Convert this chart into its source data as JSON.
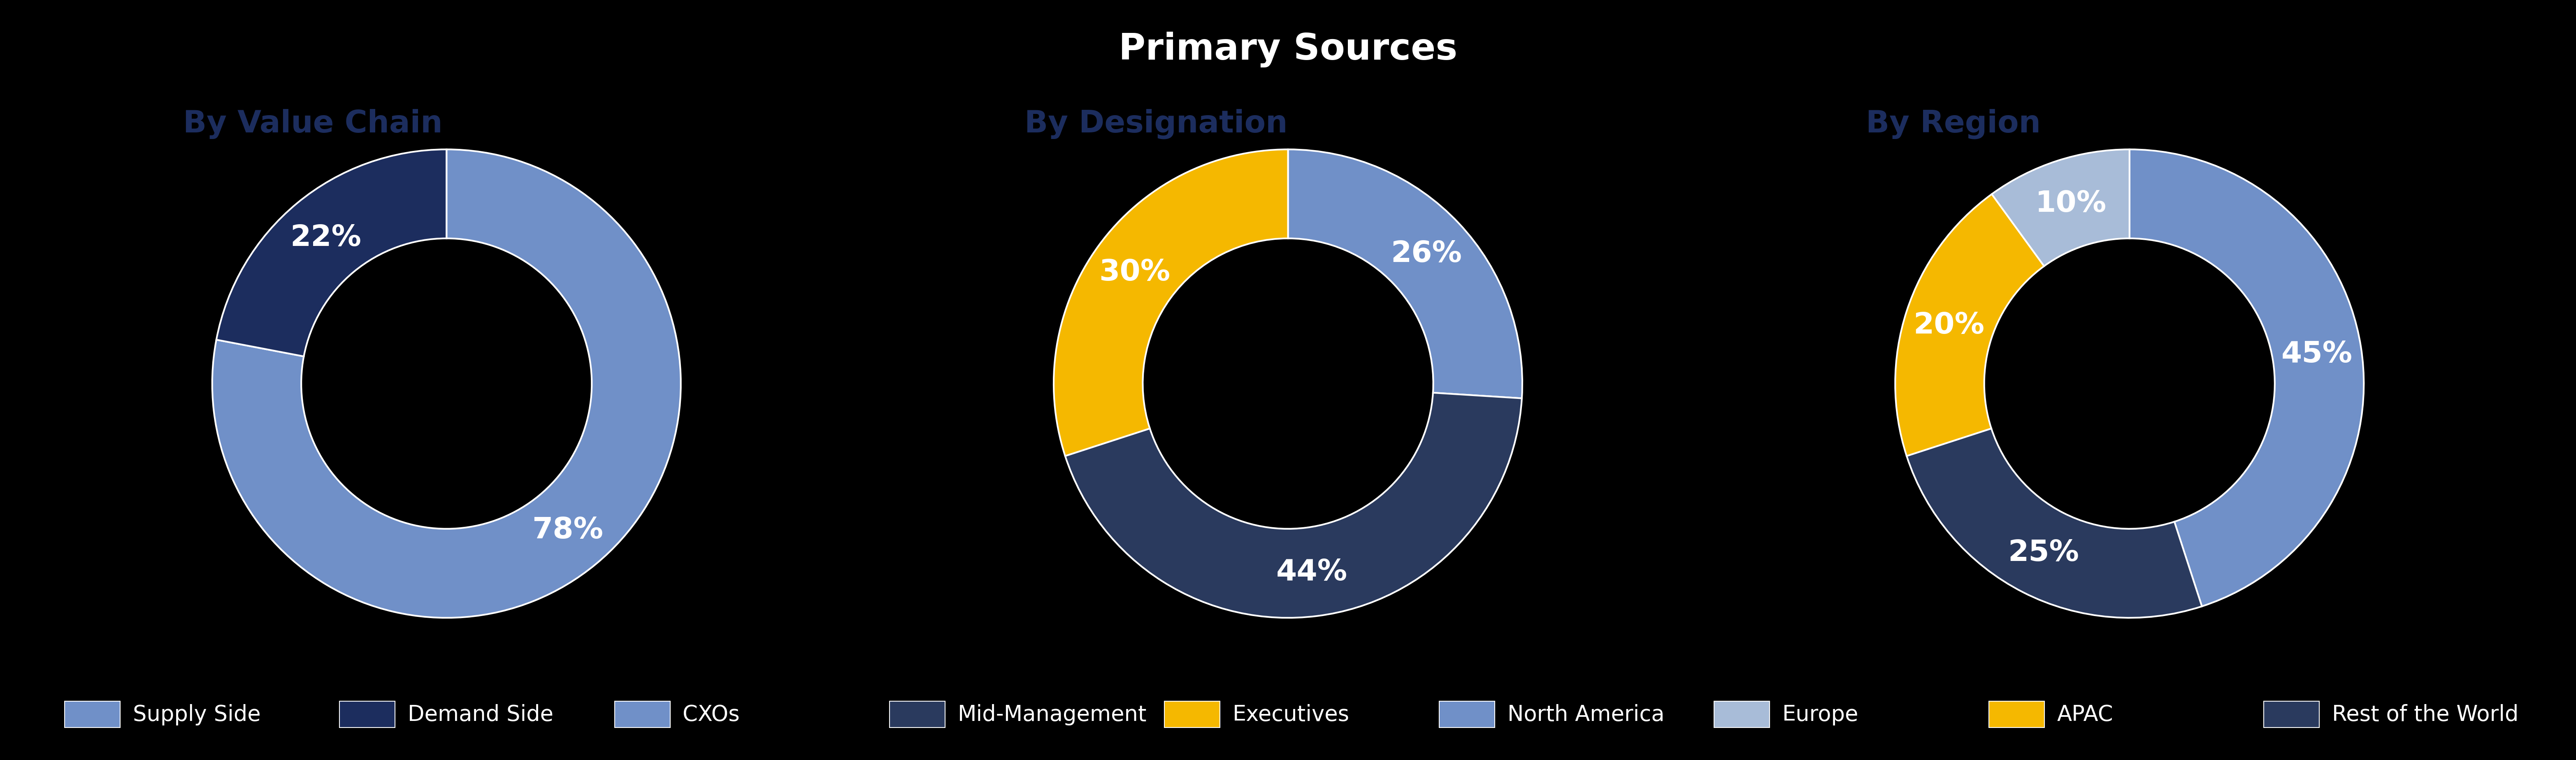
{
  "title": "Primary Sources",
  "title_bg_color": "#229944",
  "title_text_color": "#ffffff",
  "background_color": "#000000",
  "subtitle_color": "#1c2d5e",
  "chart1": {
    "subtitle": "By Value Chain",
    "slices": [
      78,
      22
    ],
    "colors": [
      "#7090c8",
      "#1c2d5e"
    ],
    "labels": [
      "78%",
      "22%"
    ],
    "startangle": 90
  },
  "chart2": {
    "subtitle": "By Designation",
    "slices": [
      26,
      44,
      30
    ],
    "colors": [
      "#7090c8",
      "#2a3a5e",
      "#f5b800"
    ],
    "labels": [
      "26%",
      "44%",
      "30%"
    ],
    "startangle": 90
  },
  "chart3": {
    "subtitle": "By Region",
    "slices": [
      45,
      25,
      20,
      10
    ],
    "colors": [
      "#7090c8",
      "#2a3a5e",
      "#f5b800",
      "#a8bcd8"
    ],
    "labels": [
      "45%",
      "25%",
      "20%",
      "10%"
    ],
    "startangle": 90
  },
  "legend_items": [
    {
      "label": "Supply Side",
      "color": "#7090c8"
    },
    {
      "label": "Demand Side",
      "color": "#1c2d5e"
    },
    {
      "label": "CXOs",
      "color": "#7090c8"
    },
    {
      "label": "Mid-Management",
      "color": "#2a3a5e"
    },
    {
      "label": "Executives",
      "color": "#f5b800"
    },
    {
      "label": "North America",
      "color": "#7090c8"
    },
    {
      "label": "Europe",
      "color": "#a8bcd8"
    },
    {
      "label": "APAC",
      "color": "#f5b800"
    },
    {
      "label": "Rest of the World",
      "color": "#2a3a5e"
    }
  ],
  "donut_width": 0.38,
  "label_fontsize": 52,
  "subtitle_fontsize": 54,
  "legend_fontsize": 38,
  "title_fontsize": 64
}
